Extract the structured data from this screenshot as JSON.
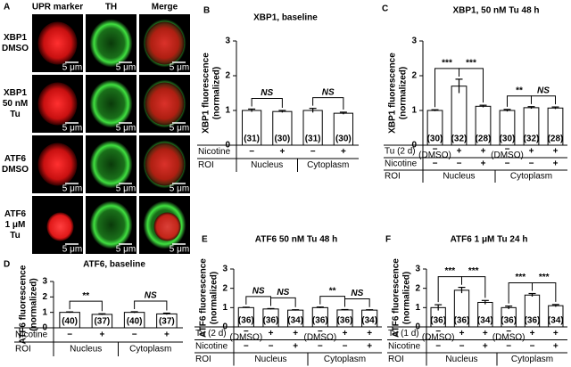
{
  "panel_a": {
    "panel": "A",
    "columns": [
      "UPR marker",
      "TH",
      "Merge"
    ],
    "row_labels": [
      [
        "XBP1",
        "DMSO"
      ],
      [
        "XBP1",
        "50 nM",
        "Tu"
      ],
      [
        "ATF6",
        "DMSO"
      ],
      [
        "ATF6",
        "1 μM",
        "Tu"
      ]
    ],
    "scale_bar": "5 μm"
  },
  "chart_data": [
    {
      "type": "bar",
      "panel": "B",
      "title": "XBP1, baseline",
      "ylabel": [
        "XBP1 fluorescence",
        "(normalized)"
      ],
      "ylim": [
        0,
        3
      ],
      "yticks": [
        0,
        1,
        2,
        3
      ],
      "values": [
        1.0,
        0.97,
        1.0,
        0.92
      ],
      "errors": [
        0.04,
        0.03,
        0.06,
        0.03
      ],
      "n_labels": [
        "(31)",
        "(30)",
        "(31)",
        "(30)"
      ],
      "annotations": [
        "NS",
        null,
        "NS"
      ],
      "rows": [
        {
          "label": "Nicotine",
          "cells": [
            "−",
            "+",
            "−",
            "+"
          ]
        }
      ],
      "roi_label": "ROI",
      "groups": [
        "Nucleus",
        "Cytoplasm"
      ]
    },
    {
      "type": "bar",
      "panel": "C",
      "title": "XBP1, 50 nM Tu 48 h",
      "ylabel": [
        "XBP1 fluorescence",
        "(normalized)"
      ],
      "ylim": [
        0,
        3
      ],
      "yticks": [
        0,
        1,
        2,
        3
      ],
      "values": [
        1.0,
        1.7,
        1.12,
        1.0,
        1.08,
        1.07
      ],
      "errors": [
        0.02,
        0.2,
        0.03,
        0.03,
        0.03,
        0.03
      ],
      "n_labels": [
        "(30)",
        "(32)",
        "(28)",
        "(30)",
        "(32)",
        "(28)"
      ],
      "annotations": [
        "***",
        "***",
        null,
        "**",
        "NS"
      ],
      "rows": [
        {
          "label": "Tu (2 d)",
          "cells": [
            "−",
            "+",
            "+",
            "−",
            "+",
            "+"
          ],
          "sublabels": [
            "(DMSO)",
            null,
            null,
            "(DMSO)",
            null,
            null
          ]
        },
        {
          "label": "Nicotine",
          "cells": [
            "−",
            "−",
            "+",
            "−",
            "−",
            "+"
          ]
        }
      ],
      "roi_label": "ROI",
      "groups": [
        "Nucleus",
        "Cytoplasm"
      ]
    },
    {
      "type": "bar",
      "panel": "D",
      "title": "ATF6, baseline",
      "ylabel": [
        "ATF6 fluorescence",
        "(normalized)"
      ],
      "ylim": [
        0,
        3
      ],
      "yticks": [
        0,
        1,
        2,
        3
      ],
      "values": [
        1.0,
        0.87,
        1.0,
        0.9
      ],
      "errors": [
        0.03,
        0.04,
        0.04,
        0.05
      ],
      "n_labels": [
        "(40)",
        "(37)",
        "(40)",
        "(37)"
      ],
      "annotations": [
        "**",
        null,
        "NS"
      ],
      "rows": [
        {
          "label": "Nicotine",
          "cells": [
            "−",
            "+",
            "−",
            "+"
          ]
        }
      ],
      "roi_label": "ROI",
      "groups": [
        "Nucleus",
        "Cytoplasm"
      ]
    },
    {
      "type": "bar",
      "panel": "E",
      "title": "ATF6 50 nM Tu 48 h",
      "ylabel": [
        "ATF6 fluorescence",
        "(normalized)"
      ],
      "ylim": [
        0,
        3
      ],
      "yticks": [
        0,
        1,
        2,
        3
      ],
      "values": [
        1.0,
        0.93,
        0.87,
        1.0,
        0.88,
        0.87
      ],
      "errors": [
        0.02,
        0.02,
        0.02,
        0.03,
        0.02,
        0.02
      ],
      "n_labels": [
        "(36)",
        "(36)",
        "(34)",
        "(36)",
        "(36)",
        "(34)"
      ],
      "annotations": [
        "NS",
        "NS",
        null,
        "**",
        "NS"
      ],
      "rows": [
        {
          "label": "Tu (2 d)",
          "cells": [
            "−",
            "+",
            "+",
            "−",
            "+",
            "+"
          ],
          "sublabels": [
            "(DMSO)",
            null,
            null,
            "(DMSO)",
            null,
            null
          ]
        },
        {
          "label": "Nicotine",
          "cells": [
            "−",
            "−",
            "+",
            "−",
            "−",
            "+"
          ]
        }
      ],
      "roi_label": "ROI",
      "groups": [
        "Nucleus",
        "Cytoplasm"
      ]
    },
    {
      "type": "bar",
      "panel": "F",
      "title": "ATF6 1 μM Tu 24 h",
      "ylabel": [
        "ATF6 fluorescence",
        "(normalized)"
      ],
      "ylim": [
        0,
        3
      ],
      "yticks": [
        0,
        1,
        2,
        3
      ],
      "values": [
        1.0,
        1.9,
        1.27,
        1.0,
        1.65,
        1.1
      ],
      "errors": [
        0.15,
        0.15,
        0.1,
        0.08,
        0.08,
        0.06
      ],
      "n_labels": [
        "(36)",
        "(36)",
        "(34)",
        "(36)",
        "(36)",
        "(34)"
      ],
      "annotations": [
        "***",
        "***",
        null,
        "***",
        "***"
      ],
      "rows": [
        {
          "label": "Tu (1 d)",
          "cells": [
            "−",
            "+",
            "+",
            "−",
            "+",
            "+"
          ],
          "sublabels": [
            "(DMSO)",
            null,
            null,
            "(DMSO)",
            null,
            null
          ]
        },
        {
          "label": "Nicotine",
          "cells": [
            "−",
            "−",
            "+",
            "−",
            "−",
            "+"
          ]
        }
      ],
      "roi_label": "ROI",
      "groups": [
        "Nucleus",
        "Cytoplasm"
      ]
    }
  ]
}
